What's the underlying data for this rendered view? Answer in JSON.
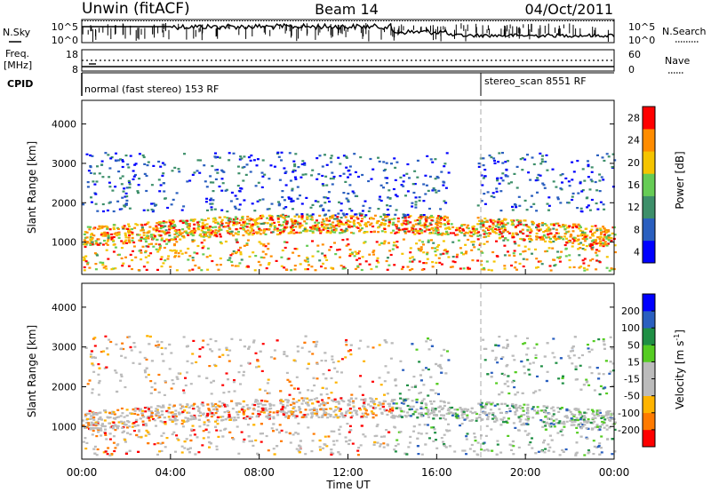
{
  "header": {
    "radar": "Unwin (fitACF)",
    "beam": "Beam 14",
    "date": "04/Oct/2011"
  },
  "chart_data": [
    {
      "type": "line",
      "panel": "noise",
      "left_label": "N.Sky",
      "right_label": "N.Search",
      "y_ticks_left": [
        "10^5",
        "10^0"
      ],
      "y_ticks_right": [
        "10^5",
        "10^0"
      ],
      "xlim_hours": [
        0,
        24
      ]
    },
    {
      "type": "line",
      "panel": "frequency",
      "left_label_top": "Freq.",
      "left_label_bottom": "[MHz]",
      "right_label": "Nave",
      "y_ticks_left": [
        "18",
        "8"
      ],
      "y_ticks_right": [
        "60",
        "0"
      ],
      "xlim_hours": [
        0,
        24
      ]
    },
    {
      "type": "table",
      "panel": "cpid",
      "label": "CPID",
      "modes": [
        {
          "start_hour": 0,
          "end_hour": 18,
          "text": "normal (fast stereo) 153 RF"
        },
        {
          "start_hour": 18,
          "end_hour": 24,
          "text": "stereo_scan 8551 RF"
        }
      ]
    },
    {
      "type": "heatmap",
      "panel": "power",
      "ylabel": "Slant Range [km]",
      "y_ticks": [
        "1000",
        "2000",
        "3000",
        "4000"
      ],
      "ylim": [
        180,
        4600
      ],
      "colorbar_label": "Power [dB]",
      "colorbar_ticks": [
        "4",
        "8",
        "12",
        "16",
        "20",
        "24",
        "28"
      ],
      "colors": [
        "#0000ff",
        "#2a5fbf",
        "#3d8f6a",
        "#66cc55",
        "#f5c400",
        "#ff8c00",
        "#ff0000"
      ]
    },
    {
      "type": "heatmap",
      "panel": "velocity",
      "ylabel": "Slant Range [km]",
      "y_ticks": [
        "1000",
        "2000",
        "3000",
        "4000"
      ],
      "ylim": [
        180,
        4600
      ],
      "colorbar_label": "Velocity [m s",
      "colorbar_label_exp": "-1",
      "colorbar_label_end": "]",
      "colorbar_ticks": [
        "-200",
        "-100",
        "-50",
        "-15",
        "15",
        "50",
        "100",
        "200"
      ],
      "colors": [
        "#ff0000",
        "#ff7a00",
        "#ffb400",
        "#bbbbbb",
        "#bbbbbb",
        "#55cc22",
        "#1f8f44",
        "#2a5fbf",
        "#0000ff"
      ]
    }
  ],
  "x_axis": {
    "label": "Time UT",
    "ticks": [
      "00:00",
      "04:00",
      "08:00",
      "12:00",
      "16:00",
      "20:00",
      "00:00"
    ]
  }
}
